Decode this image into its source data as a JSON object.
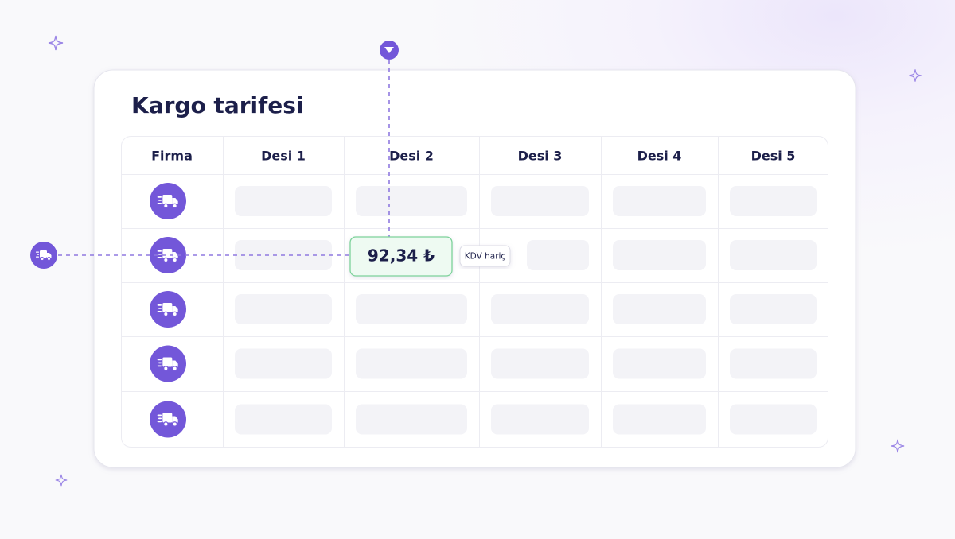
{
  "title": "Kargo tarifesi",
  "table": {
    "header": [
      "Firma",
      "Desi 1",
      "Desi 2",
      "Desi 3",
      "Desi 4",
      "Desi 5"
    ]
  },
  "highlight": {
    "price": "92,34 ₺",
    "badge": "KDV hariç"
  }
}
